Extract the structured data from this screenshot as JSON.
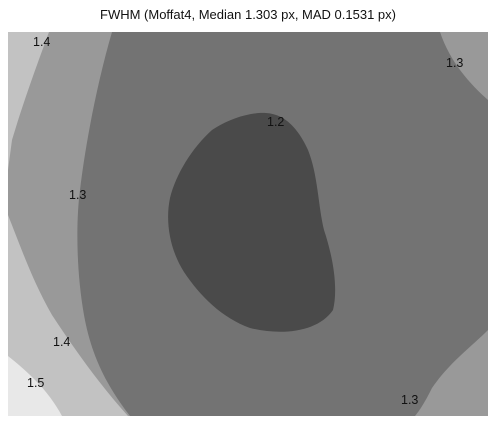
{
  "chart_data": {
    "type": "contour",
    "title": "FWHM (Moffat4, Median 1.303 px, MAD 0.1531 px)",
    "xlabel": "",
    "ylabel": "",
    "grid": false,
    "legend": "none",
    "levels": [
      1.2,
      1.3,
      1.4,
      1.5
    ],
    "fills": {
      "below_1.2": "#4a4a4a",
      "1.2_to_1.3": "#737373",
      "1.3_to_1.4": "#999999",
      "1.4_to_1.5": "#c2c2c2",
      "above_1.5": "#e8e8e8"
    },
    "contour_labels": [
      {
        "text": "1.4",
        "level": 1.4
      },
      {
        "text": "1.3",
        "level": 1.3
      },
      {
        "text": "1.2",
        "level": 1.2
      },
      {
        "text": "1.3",
        "level": 1.3
      },
      {
        "text": "1.4",
        "level": 1.4
      },
      {
        "text": "1.5",
        "level": 1.5
      },
      {
        "text": "1.3",
        "level": 1.3
      }
    ]
  }
}
